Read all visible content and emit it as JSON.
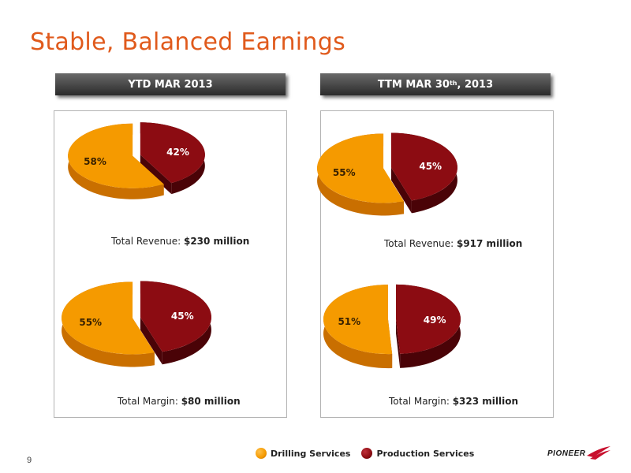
{
  "title": "Stable, Balanced Earnings",
  "page_number": "9",
  "banners": {
    "left": "YTD MAR 2013",
    "right_main": "TTM MAR 30",
    "right_sup": "th",
    "right_tail": ", 2013"
  },
  "legend": {
    "drilling": "Drilling Services",
    "production": "Production Services"
  },
  "logo": {
    "text": "PIONEER"
  },
  "colors": {
    "drilling": "#f59a00",
    "drilling_side": "#c96f00",
    "production": "#8c0c12",
    "production_side": "#4a0307",
    "title": "#e05a1c"
  },
  "chart_data": [
    {
      "type": "pie",
      "period": "YTD MAR 2013",
      "caption_label": "Total Revenue:",
      "caption_value": "$230 million",
      "series": [
        {
          "name": "Drilling Services",
          "value": 58,
          "label": "58%"
        },
        {
          "name": "Production Services",
          "value": 42,
          "label": "42%"
        }
      ]
    },
    {
      "type": "pie",
      "period": "YTD MAR 2013",
      "caption_label": "Total Margin:",
      "caption_value": "$80 million",
      "series": [
        {
          "name": "Drilling Services",
          "value": 55,
          "label": "55%"
        },
        {
          "name": "Production Services",
          "value": 45,
          "label": "45%"
        }
      ]
    },
    {
      "type": "pie",
      "period": "TTM MAR 30th, 2013",
      "caption_label": "Total Revenue:",
      "caption_value": "$917 million",
      "series": [
        {
          "name": "Drilling Services",
          "value": 55,
          "label": "55%"
        },
        {
          "name": "Production Services",
          "value": 45,
          "label": "45%"
        }
      ]
    },
    {
      "type": "pie",
      "period": "TTM MAR 30th, 2013",
      "caption_label": "Total Margin:",
      "caption_value": "$323 million",
      "series": [
        {
          "name": "Drilling Services",
          "value": 51,
          "label": "51%"
        },
        {
          "name": "Production Services",
          "value": 49,
          "label": "49%"
        }
      ]
    }
  ]
}
